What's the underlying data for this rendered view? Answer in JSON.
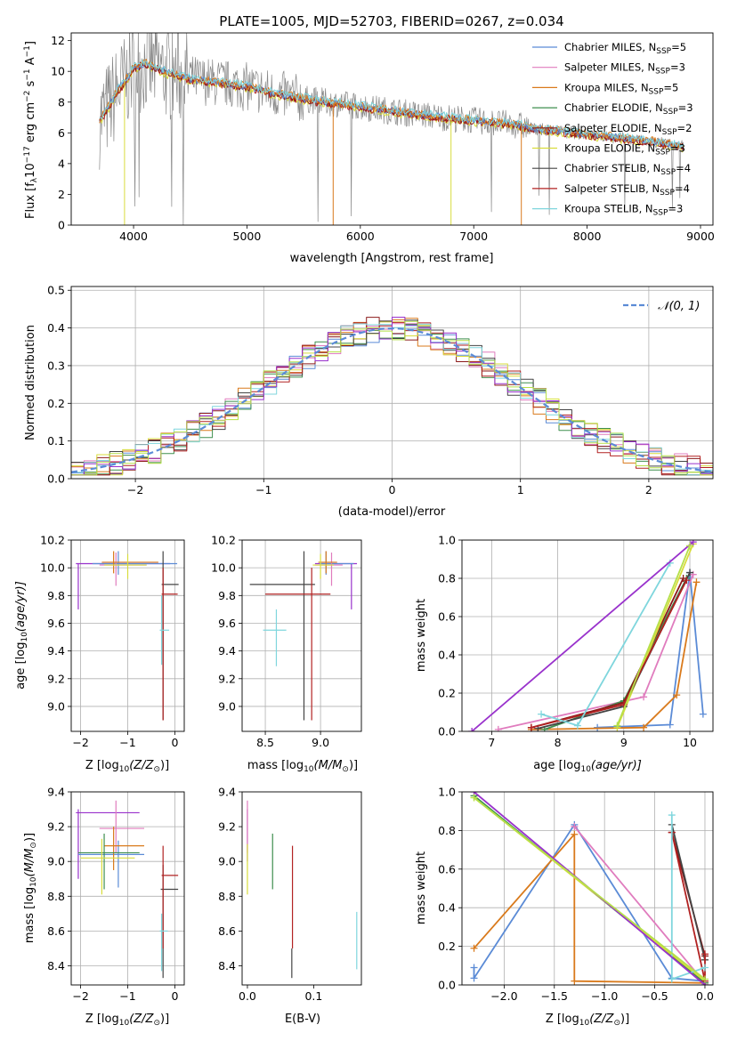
{
  "colors": {
    "Chabrier MILES": "#5b8bd6",
    "Salpeter MILES": "#e07cbe",
    "Kroupa MILES": "#d97a1c",
    "Chabrier ELODIE": "#3f8f4f",
    "Salpeter ELODIE": "#8b1a1a",
    "Kroupa ELODIE": "#d8dc3c",
    "Chabrier STELIB": "#444444",
    "Salpeter STELIB": "#b22222",
    "Kroupa STELIB": "#7fd6dd",
    "purple": "#9932cc",
    "lime": "#b5e04a",
    "data": "#888888",
    "gauss": "#5b8bd6"
  },
  "chart_data": [
    {
      "id": "spectrum",
      "type": "line",
      "title": "PLATE=1005, MJD=52703, FIBERID=0267, z=0.034",
      "xlabel": "wavelength [Angstrom, rest frame]",
      "ylabel": "Flux [f",
      "ylabel_parts": [
        "Flux [f",
        "λ",
        "10",
        "−17",
        " erg cm",
        "−2",
        " s",
        "−1",
        " A",
        "−1",
        "]"
      ],
      "xlim": [
        3450,
        9110
      ],
      "ylim": [
        0,
        12.5
      ],
      "xticks": [
        4000,
        5000,
        6000,
        7000,
        8000,
        9000
      ],
      "yticks": [
        0,
        2,
        4,
        6,
        8,
        10,
        12
      ],
      "grid": false,
      "legend_position": "top-right",
      "series": [
        {
          "label": "Chabrier MILES",
          "nssp": "5"
        },
        {
          "label": "Salpeter MILES",
          "nssp": "3"
        },
        {
          "label": "Kroupa MILES",
          "nssp": "5"
        },
        {
          "label": "Chabrier ELODIE",
          "nssp": "3"
        },
        {
          "label": "Salpeter ELODIE",
          "nssp": "2"
        },
        {
          "label": "Kroupa ELODIE",
          "nssp": "3"
        },
        {
          "label": "Chabrier STELIB",
          "nssp": "4"
        },
        {
          "label": "Salpeter STELIB",
          "nssp": "4"
        },
        {
          "label": "Kroupa STELIB",
          "nssp": "3"
        }
      ],
      "model_shape": {
        "x": [
          3700,
          3750,
          3850,
          3950,
          4000,
          4100,
          4300,
          4500,
          4700,
          5000,
          5200,
          5500,
          6000,
          6500,
          7000,
          7400,
          7500,
          8000,
          8500,
          8850
        ],
        "y": [
          6.8,
          7.3,
          8.6,
          9.6,
          10.2,
          10.5,
          9.9,
          9.5,
          9.3,
          9.0,
          8.6,
          8.2,
          7.7,
          7.2,
          6.8,
          6.5,
          6.3,
          5.9,
          5.5,
          5.1
        ]
      }
    },
    {
      "id": "residuals",
      "type": "line",
      "xlabel": "(data-model)/error",
      "ylabel": "Normed distribution",
      "xlim": [
        -2.5,
        2.5
      ],
      "ylim": [
        0,
        0.51
      ],
      "xticks": [
        -2,
        -1,
        0,
        1,
        2
      ],
      "xtick_labels": [
        "−2",
        "−1",
        "0",
        "1",
        "2"
      ],
      "yticks": [
        0.0,
        0.1,
        0.2,
        0.3,
        0.4,
        0.5
      ],
      "ytick_labels": [
        "0.0",
        "0.1",
        "0.2",
        "0.3",
        "0.4",
        "0.5"
      ],
      "grid": true,
      "legend_position": "top-right",
      "legend_label": "𝒩(0, 1)",
      "bin_width": 0.1
    },
    {
      "id": "z-age",
      "type": "scatter",
      "xlabel": "Z [log",
      "xlabel_sub": "10",
      "xlabel_rest": "(Z/Z",
      "ylabel": "age  [log",
      "ylabel_rest": "(age/yr)]",
      "xlim": [
        -2.2,
        0.2
      ],
      "ylim": [
        8.82,
        10.2
      ],
      "xticks": [
        -2,
        -1,
        0
      ],
      "xtick_labels": [
        "−2",
        "−1",
        "0"
      ],
      "yticks": [
        9.0,
        9.2,
        9.4,
        9.6,
        9.8,
        10.0,
        10.2
      ],
      "ytick_labels": [
        "9.0",
        "9.2",
        "9.4",
        "9.6",
        "9.8",
        "10.0",
        "10.2"
      ],
      "grid": true,
      "crosses": [
        {
          "c": "purple",
          "x": [
            -2.1,
            -0.1
          ],
          "y": [
            9.7,
            10.03
          ],
          "cx": -2.05,
          "cy": 10.03
        },
        {
          "c": "Chabrier MILES",
          "x": [
            -1.75,
            0.05
          ],
          "y": [
            9.95,
            10.12
          ],
          "cx": -1.2,
          "cy": 10.03
        },
        {
          "c": "Salpeter MILES",
          "x": [
            -1.6,
            -0.6
          ],
          "y": [
            9.87,
            10.11
          ],
          "cx": -1.25,
          "cy": 10.02
        },
        {
          "c": "Kroupa MILES",
          "x": [
            -1.55,
            -0.35
          ],
          "y": [
            9.96,
            10.12
          ],
          "cx": -1.3,
          "cy": 10.04
        },
        {
          "c": "Kroupa ELODIE",
          "x": [
            -1.5,
            -0.6
          ],
          "y": [
            9.92,
            10.1
          ],
          "cx": -1.0,
          "cy": 10.02
        },
        {
          "c": "Chabrier STELIB",
          "x": [
            -0.28,
            0.08
          ],
          "y": [
            8.9,
            10.12
          ],
          "cx": -0.25,
          "cy": 9.88
        },
        {
          "c": "Salpeter STELIB",
          "x": [
            -0.28,
            0.06
          ],
          "y": [
            8.9,
            10.0
          ],
          "cx": -0.25,
          "cy": 9.81
        },
        {
          "c": "Kroupa STELIB",
          "x": [
            -0.32,
            -0.12
          ],
          "y": [
            9.3,
            9.8
          ],
          "cx": -0.28,
          "cy": 9.55
        }
      ]
    },
    {
      "id": "mass-age",
      "type": "scatter",
      "xlabel": "mass [log",
      "xlabel_rest": "(M/M",
      "xlim": [
        8.29,
        9.37
      ],
      "ylim": [
        8.82,
        10.2
      ],
      "xticks": [
        8.5,
        9.0
      ],
      "xtick_labels": [
        "8.5",
        "9.0"
      ],
      "yticks": [
        9.0,
        9.2,
        9.4,
        9.6,
        9.8,
        10.0,
        10.2
      ],
      "ytick_labels": [
        "9.0",
        "9.2",
        "9.4",
        "9.6",
        "9.8",
        "10.0",
        "10.2"
      ],
      "grid": true,
      "crosses": [
        {
          "c": "purple",
          "x": [
            8.95,
            9.33
          ],
          "y": [
            9.7,
            10.03
          ],
          "cx": 9.28,
          "cy": 10.03
        },
        {
          "c": "Chabrier MILES",
          "x": [
            8.99,
            9.3
          ],
          "y": [
            9.95,
            10.12
          ],
          "cx": 9.05,
          "cy": 10.03
        },
        {
          "c": "Salpeter MILES",
          "x": [
            8.95,
            9.2
          ],
          "y": [
            9.87,
            10.11
          ],
          "cx": 9.1,
          "cy": 10.02
        },
        {
          "c": "Kroupa MILES",
          "x": [
            8.98,
            9.15
          ],
          "y": [
            9.96,
            10.12
          ],
          "cx": 9.05,
          "cy": 10.04
        },
        {
          "c": "Kroupa ELODIE",
          "x": [
            8.93,
            9.12
          ],
          "y": [
            9.92,
            10.1
          ],
          "cx": 9.0,
          "cy": 10.02
        },
        {
          "c": "Chabrier STELIB",
          "x": [
            8.36,
            8.95
          ],
          "y": [
            8.9,
            10.12
          ],
          "cx": 8.85,
          "cy": 9.88
        },
        {
          "c": "Salpeter STELIB",
          "x": [
            8.5,
            9.09
          ],
          "y": [
            8.9,
            10.0
          ],
          "cx": 8.92,
          "cy": 9.81
        },
        {
          "c": "Kroupa STELIB",
          "x": [
            8.48,
            8.69
          ],
          "y": [
            9.29,
            9.7
          ],
          "cx": 8.6,
          "cy": 9.55
        }
      ]
    },
    {
      "id": "age-weight",
      "type": "line",
      "xlabel": "age  [log",
      "xlabel_rest": "(age/yr)]",
      "ylabel": "mass weight",
      "xlim": [
        6.55,
        10.35
      ],
      "ylim": [
        0,
        1.0
      ],
      "xticks": [
        7,
        8,
        9,
        10
      ],
      "xtick_labels": [
        "7",
        "8",
        "9",
        "10"
      ],
      "yticks": [
        0.0,
        0.2,
        0.4,
        0.6,
        0.8,
        1.0
      ],
      "ytick_labels": [
        "0.0",
        "0.2",
        "0.4",
        "0.6",
        "0.8",
        "1.0"
      ],
      "grid": true,
      "series": [
        {
          "c": "Chabrier MILES",
          "x": [
            8.6,
            9.7,
            10.0,
            10.2
          ],
          "y": [
            0.02,
            0.035,
            0.83,
            0.09
          ]
        },
        {
          "c": "Salpeter MILES",
          "x": [
            7.1,
            9.3,
            10.05
          ],
          "y": [
            0.01,
            0.18,
            0.82
          ]
        },
        {
          "c": "Kroupa MILES",
          "x": [
            7.6,
            9.3,
            9.8,
            10.1
          ],
          "y": [
            0.01,
            0.02,
            0.19,
            0.78
          ]
        },
        {
          "c": "Chabrier ELODIE",
          "x": [
            7.8,
            9.0,
            9.95
          ],
          "y": [
            0.01,
            0.16,
            0.8
          ]
        },
        {
          "c": "Salpeter ELODIE",
          "x": [
            7.6,
            9.0,
            9.9
          ],
          "y": [
            0.02,
            0.15,
            0.8
          ]
        },
        {
          "c": "Kroupa ELODIE",
          "x": [
            8.9,
            10.05
          ],
          "y": [
            0.02,
            0.98
          ]
        },
        {
          "c": "Chabrier STELIB",
          "x": [
            7.7,
            9.0,
            10.0
          ],
          "y": [
            0.015,
            0.13,
            0.83
          ]
        },
        {
          "c": "Salpeter STELIB",
          "x": [
            7.6,
            9.0,
            9.95
          ],
          "y": [
            0.02,
            0.14,
            0.79
          ]
        },
        {
          "c": "Kroupa STELIB",
          "x": [
            7.75,
            8.3,
            9.7
          ],
          "y": [
            0.09,
            0.03,
            0.88
          ]
        },
        {
          "c": "purple",
          "x": [
            6.7,
            10.05
          ],
          "y": [
            0.0,
            0.99
          ]
        },
        {
          "c": "lime",
          "x": [
            8.9,
            10.0
          ],
          "y": [
            0.03,
            0.97
          ]
        }
      ]
    },
    {
      "id": "z-mass",
      "type": "scatter",
      "xlabel": "Z [log",
      "xlabel_rest": "(Z/Z",
      "ylabel": "mass [log",
      "ylabel_rest": "(M/M",
      "xlim": [
        -2.2,
        0.2
      ],
      "ylim": [
        8.29,
        9.4
      ],
      "xticks": [
        -2,
        -1,
        0
      ],
      "xtick_labels": [
        "−2",
        "−1",
        "0"
      ],
      "yticks": [
        8.4,
        8.6,
        8.8,
        9.0,
        9.2,
        9.4
      ],
      "ytick_labels": [
        "8.4",
        "8.6",
        "8.8",
        "9.0",
        "9.2",
        "9.4"
      ],
      "grid": true,
      "crosses": [
        {
          "c": "purple",
          "x": [
            -2.1,
            -0.75
          ],
          "y": [
            8.9,
            9.3
          ],
          "cx": -2.05,
          "cy": 9.28
        },
        {
          "c": "Chabrier MILES",
          "x": [
            -2.05,
            -0.65
          ],
          "y": [
            8.85,
            9.12
          ],
          "cx": -1.2,
          "cy": 9.04
        },
        {
          "c": "Salpeter MILES",
          "x": [
            -1.6,
            -0.65
          ],
          "y": [
            9.05,
            9.35
          ],
          "cx": -1.25,
          "cy": 9.19
        },
        {
          "c": "Kroupa MILES",
          "x": [
            -1.5,
            -0.65
          ],
          "y": [
            8.95,
            9.2
          ],
          "cx": -1.3,
          "cy": 9.09
        },
        {
          "c": "Chabrier ELODIE",
          "x": [
            -2.05,
            -0.75
          ],
          "y": [
            8.84,
            9.16
          ],
          "cx": -1.5,
          "cy": 9.05
        },
        {
          "c": "Kroupa ELODIE",
          "x": [
            -2.0,
            -0.85
          ],
          "y": [
            8.81,
            9.13
          ],
          "cx": -1.55,
          "cy": 9.02
        },
        {
          "c": "Chabrier STELIB",
          "x": [
            -0.3,
            0.07
          ],
          "y": [
            8.33,
            8.98
          ],
          "cx": -0.25,
          "cy": 8.84
        },
        {
          "c": "Salpeter STELIB",
          "x": [
            -0.28,
            0.07
          ],
          "y": [
            8.5,
            9.09
          ],
          "cx": -0.25,
          "cy": 8.92
        },
        {
          "c": "Kroupa STELIB",
          "x": [
            -0.32,
            -0.15
          ],
          "y": [
            8.37,
            8.7
          ],
          "cx": -0.28,
          "cy": 8.6
        }
      ]
    },
    {
      "id": "ebv-mass",
      "type": "scatter",
      "xlabel": "E(B-V)",
      "xlim": [
        -0.008,
        0.172
      ],
      "ylim": [
        8.29,
        9.4
      ],
      "xticks": [
        0.0,
        0.1
      ],
      "xtick_labels": [
        "0.0",
        "0.1"
      ],
      "yticks": [
        8.4,
        8.6,
        8.8,
        9.0,
        9.2,
        9.4
      ],
      "ytick_labels": [
        "8.4",
        "8.6",
        "8.8",
        "9.0",
        "9.2",
        "9.4"
      ],
      "grid": false,
      "crosses": [
        {
          "c": "purple",
          "x": [
            0.0,
            0.0
          ],
          "y": [
            9.0,
            9.3
          ],
          "cx": 0.0,
          "cy": 9.28
        },
        {
          "c": "Salpeter MILES",
          "x": [
            0.0,
            0.0
          ],
          "y": [
            9.05,
            9.35
          ],
          "cx": 0.0,
          "cy": 9.19
        },
        {
          "c": "Kroupa ELODIE",
          "x": [
            0.0,
            0.0
          ],
          "y": [
            8.81,
            9.1
          ],
          "cx": 0.0,
          "cy": 9.02
        },
        {
          "c": "Chabrier ELODIE",
          "x": [
            0.038,
            0.038
          ],
          "y": [
            8.84,
            9.16
          ],
          "cx": 0.038,
          "cy": 9.05
        },
        {
          "c": "Salpeter STELIB",
          "x": [
            0.068,
            0.068
          ],
          "y": [
            8.5,
            9.09
          ],
          "cx": 0.068,
          "cy": 8.92
        },
        {
          "c": "Chabrier STELIB",
          "x": [
            0.067,
            0.067
          ],
          "y": [
            8.33,
            8.5
          ],
          "cx": 0.067,
          "cy": 8.42
        },
        {
          "c": "Kroupa STELIB",
          "x": [
            0.165,
            0.165
          ],
          "y": [
            8.38,
            8.71
          ],
          "cx": 0.165,
          "cy": 8.6
        }
      ]
    },
    {
      "id": "z-weight",
      "type": "line",
      "xlabel": "Z [log",
      "xlabel_rest": "(Z/Z",
      "ylabel": "mass weight",
      "xlim": [
        -2.42,
        0.08
      ],
      "ylim": [
        0,
        1.0
      ],
      "xticks": [
        -2.0,
        -1.5,
        -1.0,
        -0.5,
        0.0
      ],
      "xtick_labels": [
        "−2.0",
        "−1.5",
        "−1.0",
        "−0.5",
        "0.0"
      ],
      "yticks": [
        0.0,
        0.2,
        0.4,
        0.6,
        0.8,
        1.0
      ],
      "ytick_labels": [
        "0.0",
        "0.2",
        "0.4",
        "0.6",
        "0.8",
        "1.0"
      ],
      "grid": true,
      "series": [
        {
          "c": "Chabrier MILES",
          "x": [
            -2.3,
            -2.3,
            -1.3,
            -0.33,
            0.0
          ],
          "y": [
            0.09,
            0.035,
            0.83,
            0.035,
            0.02
          ]
        },
        {
          "c": "Salpeter MILES",
          "x": [
            -1.3,
            0.0
          ],
          "y": [
            0.82,
            0.01
          ]
        },
        {
          "c": "Kroupa MILES",
          "x": [
            -2.3,
            -1.3,
            -1.3,
            -0.0,
            0.0
          ],
          "y": [
            0.19,
            0.78,
            0.02,
            0.01,
            0.0
          ]
        },
        {
          "c": "Chabrier ELODIE",
          "x": [
            -2.3,
            0.0
          ],
          "y": [
            0.98,
            0.01
          ]
        },
        {
          "c": "Salpeter ELODIE",
          "x": [
            -0.33,
            0.0
          ],
          "y": [
            0.79,
            0.15
          ]
        },
        {
          "c": "Kroupa ELODIE",
          "x": [
            -2.3,
            0.0
          ],
          "y": [
            0.97,
            0.02
          ]
        },
        {
          "c": "Chabrier STELIB",
          "x": [
            -0.33,
            0.0
          ],
          "y": [
            0.83,
            0.13
          ]
        },
        {
          "c": "Salpeter STELIB",
          "x": [
            -0.33,
            0.0,
            0.0
          ],
          "y": [
            0.79,
            0.02,
            0.16
          ]
        },
        {
          "c": "Kroupa STELIB",
          "x": [
            -0.33,
            -0.33,
            0.0
          ],
          "y": [
            0.88,
            0.03,
            0.09
          ]
        },
        {
          "c": "purple",
          "x": [
            -2.3,
            0.0
          ],
          "y": [
            1.0,
            0.0
          ]
        },
        {
          "c": "lime",
          "x": [
            -2.3,
            0.0
          ],
          "y": [
            0.97,
            0.03
          ]
        }
      ]
    }
  ]
}
